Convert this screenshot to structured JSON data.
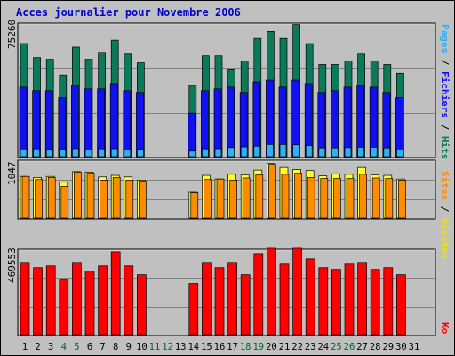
{
  "title": "Acces journalier pour Novembre 2006",
  "labels": {
    "pages": "Pages",
    "files": "Fichiers",
    "hits": "Hits",
    "sites": "Sites",
    "visits": "Visites",
    "kb": "Ko",
    "sep": " / "
  },
  "colors": {
    "background": "#c0c0c0",
    "title": "#0000cc",
    "hits": "#0b7a5a",
    "files": "#1010f0",
    "pages": "#30b0f0",
    "visits": "#ffff30",
    "sites": "#ff8c00",
    "kb": "#ff0000",
    "weekend_day": "#006633",
    "weekday": "#000000"
  },
  "chart_data": {
    "type": "bar",
    "title": "Acces journalier pour Novembre 2006",
    "x": [
      1,
      2,
      3,
      4,
      5,
      6,
      7,
      8,
      9,
      10,
      11,
      12,
      13,
      14,
      15,
      16,
      17,
      18,
      19,
      20,
      21,
      22,
      23,
      24,
      25,
      26,
      27,
      28,
      29,
      30,
      31
    ],
    "weekend_days": [
      4,
      5,
      11,
      12,
      18,
      19,
      25,
      26
    ],
    "panels": [
      {
        "name": "hits-files-pages",
        "ymax": 75260,
        "ymax_label": "75260",
        "series": [
          {
            "name": "Hits",
            "values": [
              65000,
              57000,
              56000,
              47000,
              63000,
              56000,
              60000,
              67000,
              59000,
              54000,
              0,
              0,
              0,
              41000,
              58000,
              58000,
              50000,
              55000,
              68000,
              72000,
              68000,
              76000,
              65000,
              53000,
              53000,
              55000,
              59000,
              55000,
              53000,
              48000,
              0
            ]
          },
          {
            "name": "Fichiers",
            "values": [
              40000,
              38000,
              38000,
              34000,
              41000,
              39000,
              39000,
              42000,
              38000,
              37000,
              0,
              0,
              0,
              25000,
              38000,
              39000,
              40000,
              37000,
              43000,
              44000,
              40000,
              44000,
              42000,
              37000,
              38000,
              40000,
              41000,
              40000,
              37000,
              34000,
              0
            ]
          },
          {
            "name": "Pages",
            "values": [
              4500,
              4500,
              4300,
              4100,
              4600,
              4400,
              4500,
              4600,
              4400,
              4300,
              0,
              0,
              0,
              3200,
              4500,
              4600,
              5200,
              5600,
              6000,
              7000,
              7000,
              6800,
              6400,
              5000,
              5000,
              5200,
              5400,
              5400,
              5000,
              4500,
              0
            ]
          }
        ]
      },
      {
        "name": "sites-visits",
        "ymax": 1047,
        "ymax_label": "1047",
        "series": [
          {
            "name": "Visites",
            "values": [
              790,
              770,
              790,
              680,
              880,
              870,
              780,
              810,
              780,
              720,
              0,
              0,
              0,
              490,
              810,
              740,
              830,
              820,
              910,
              1040,
              960,
              920,
              900,
              800,
              840,
              830,
              960,
              820,
              810,
              740,
              0
            ]
          },
          {
            "name": "Sites",
            "values": [
              790,
              730,
              770,
              600,
              870,
              850,
              720,
              770,
              720,
              700,
              0,
              0,
              0,
              480,
              730,
              740,
              720,
              760,
              820,
              1020,
              830,
              850,
              770,
              750,
              750,
              750,
              830,
              760,
              750,
              720,
              0
            ]
          }
        ]
      },
      {
        "name": "kb",
        "ymax": 469553,
        "ymax_label": "469553",
        "series": [
          {
            "name": "Ko",
            "values": [
              410000,
              380000,
              390000,
              310000,
              410000,
              360000,
              390000,
              470000,
              390000,
              340000,
              0,
              0,
              0,
              290000,
              410000,
              380000,
              410000,
              340000,
              460000,
              490000,
              400000,
              490000,
              430000,
              380000,
              370000,
              400000,
              410000,
              370000,
              380000,
              340000,
              0
            ]
          }
        ]
      }
    ]
  }
}
